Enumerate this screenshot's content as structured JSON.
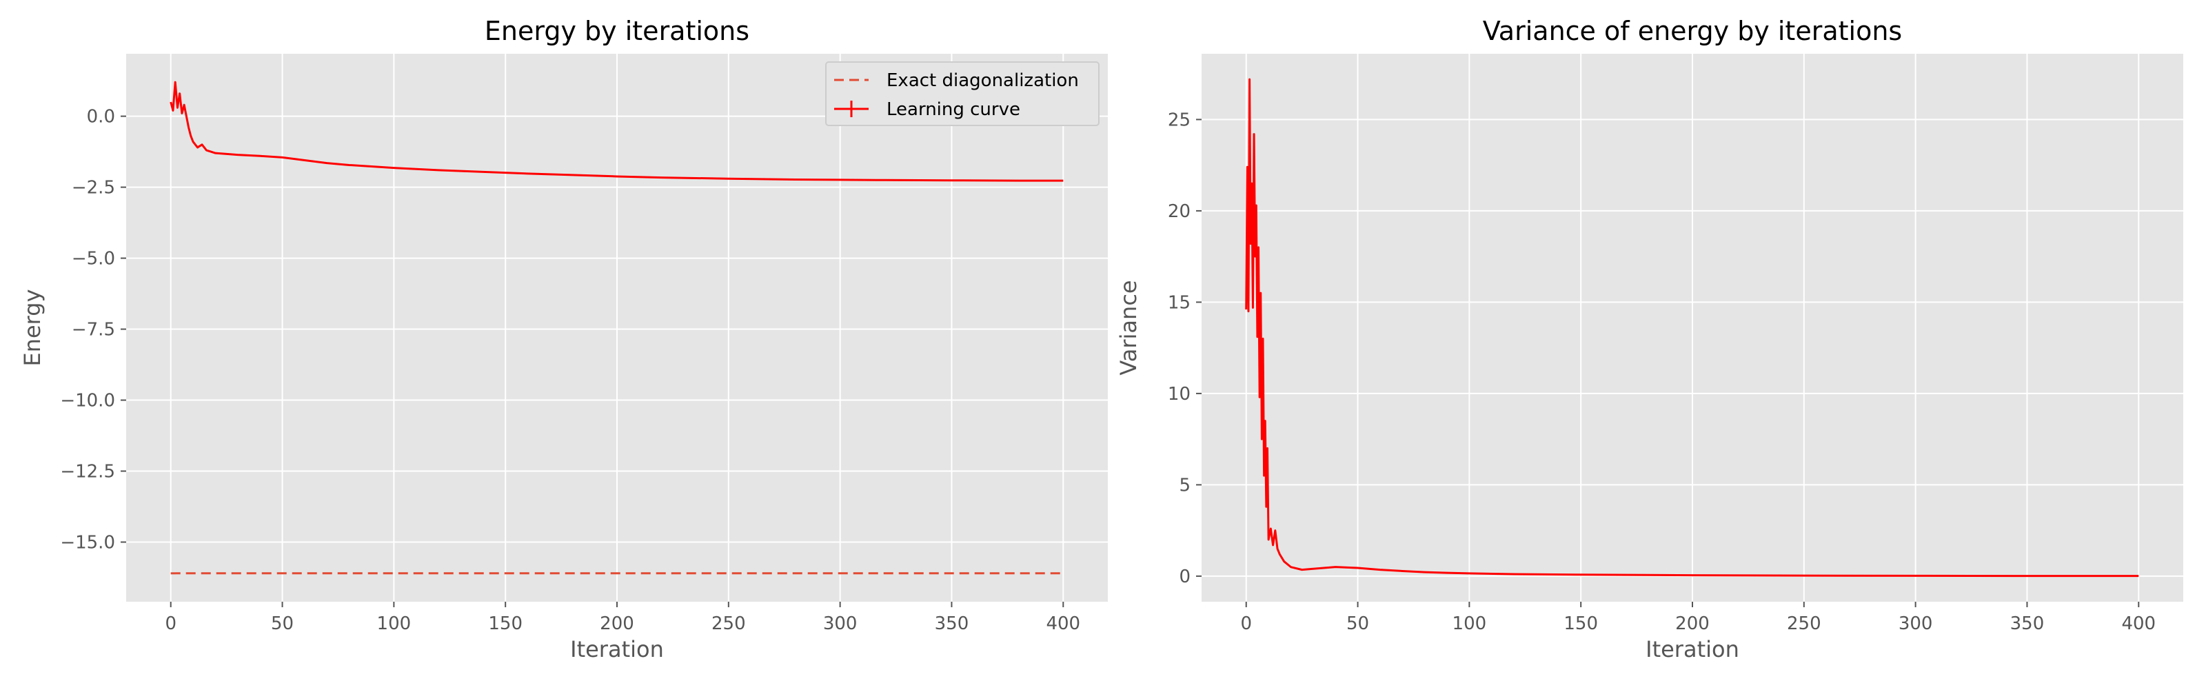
{
  "chart_data": [
    {
      "type": "line",
      "title": "Energy by iterations",
      "xlabel": "Iteration",
      "ylabel": "Energy",
      "xlim": [
        -20,
        420
      ],
      "ylim": [
        -17.1,
        2.2
      ],
      "xticks": [
        0,
        50,
        100,
        150,
        200,
        250,
        300,
        350,
        400
      ],
      "xtick_labels": [
        "0",
        "50",
        "100",
        "150",
        "200",
        "250",
        "300",
        "350",
        "400"
      ],
      "yticks": [
        0.0,
        -2.5,
        -5.0,
        -7.5,
        -10.0,
        -12.5,
        -15.0
      ],
      "ytick_labels": [
        "0.0",
        "−2.5",
        "−5.0",
        "−7.5",
        "−10.0",
        "−12.5",
        "−15.0"
      ],
      "grid": true,
      "legend_position": "top-right",
      "legend": [
        "Exact diagonalization",
        "Learning curve"
      ],
      "series": [
        {
          "name": "Exact diagonalization",
          "style": "dashed",
          "color": "#E24A33",
          "x": [
            0,
            400
          ],
          "y": [
            -16.1,
            -16.1
          ]
        },
        {
          "name": "Learning curve",
          "style": "solid",
          "color": "#FF0000",
          "x": [
            0,
            1,
            2,
            3,
            4,
            5,
            6,
            7,
            8,
            9,
            10,
            12,
            14,
            16,
            18,
            20,
            25,
            30,
            40,
            50,
            60,
            70,
            80,
            90,
            100,
            120,
            140,
            160,
            180,
            200,
            220,
            250,
            280,
            300,
            320,
            350,
            380,
            400
          ],
          "y": [
            0.5,
            0.2,
            1.2,
            0.3,
            0.8,
            0.1,
            0.4,
            0.0,
            -0.4,
            -0.7,
            -0.9,
            -1.1,
            -1.0,
            -1.2,
            -1.25,
            -1.3,
            -1.33,
            -1.36,
            -1.4,
            -1.45,
            -1.55,
            -1.65,
            -1.72,
            -1.77,
            -1.82,
            -1.9,
            -1.96,
            -2.02,
            -2.07,
            -2.12,
            -2.16,
            -2.2,
            -2.23,
            -2.24,
            -2.25,
            -2.26,
            -2.27,
            -2.27
          ]
        }
      ]
    },
    {
      "type": "line",
      "title": "Variance of energy by iterations",
      "xlabel": "Iteration",
      "ylabel": "Variance",
      "xlim": [
        -20,
        420
      ],
      "ylim": [
        -1.4,
        28.6
      ],
      "xticks": [
        0,
        50,
        100,
        150,
        200,
        250,
        300,
        350,
        400
      ],
      "xtick_labels": [
        "0",
        "50",
        "100",
        "150",
        "200",
        "250",
        "300",
        "350",
        "400"
      ],
      "yticks": [
        0,
        5,
        10,
        15,
        20,
        25
      ],
      "ytick_labels": [
        "0",
        "5",
        "10",
        "15",
        "20",
        "25"
      ],
      "grid": true,
      "series": [
        {
          "style": "solid",
          "color": "#FF0000",
          "x": [
            0,
            0.5,
            1,
            1.5,
            2,
            2.5,
            3,
            3.5,
            4,
            4.5,
            5,
            5.5,
            6,
            6.5,
            7,
            7.5,
            8,
            8.5,
            9,
            9.5,
            10,
            11,
            12,
            13,
            14,
            15,
            17,
            20,
            25,
            30,
            40,
            50,
            60,
            70,
            80,
            90,
            100,
            120,
            150,
            200,
            250,
            300,
            350,
            400
          ],
          "y": [
            14.6,
            22.4,
            14.5,
            27.2,
            18.2,
            21.5,
            14.7,
            24.2,
            17.5,
            20.3,
            13.1,
            18.0,
            9.8,
            15.5,
            7.5,
            13.0,
            5.5,
            8.5,
            3.8,
            7.0,
            2.0,
            2.6,
            1.7,
            2.5,
            1.5,
            1.2,
            0.8,
            0.5,
            0.35,
            0.4,
            0.5,
            0.45,
            0.35,
            0.28,
            0.22,
            0.18,
            0.15,
            0.11,
            0.08,
            0.05,
            0.03,
            0.02,
            0.01,
            0.01
          ]
        }
      ]
    }
  ]
}
